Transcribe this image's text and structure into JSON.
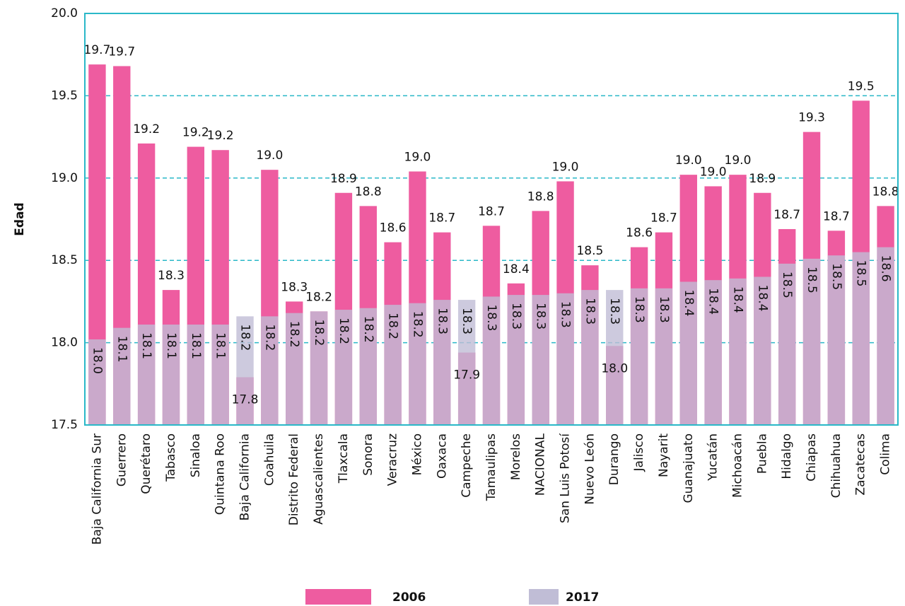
{
  "chart_data": {
    "type": "bar",
    "y_label": "Edad",
    "categories": [
      "Baja California Sur",
      "Guerrero",
      "Querétaro",
      "Tabasco",
      "Sinaloa",
      "Quintana Roo",
      "Baja California",
      "Coahuila",
      "Distrito Federal",
      "Aguascalientes",
      "Tlaxcala",
      "Sonora",
      "Veracruz",
      "México",
      "Oaxaca",
      "Campeche",
      "Tamaulipas",
      "Morelos",
      "NACIONAL",
      "San Luis Potosí",
      "Nuevo León",
      "Durango",
      "Jalisco",
      "Nayarit",
      "Guanajuato",
      "Yucatán",
      "Michoacán",
      "Puebla",
      "Hidalgo",
      "Chiapas",
      "Chihuahua",
      "Zacatecas",
      "Colima"
    ],
    "series": [
      {
        "name": "2006",
        "color": "#ee5ca0",
        "values": [
          19.69,
          19.68,
          19.21,
          18.32,
          19.19,
          19.17,
          17.79,
          19.05,
          18.25,
          18.19,
          18.91,
          18.83,
          18.61,
          19.04,
          18.67,
          17.94,
          18.71,
          18.36,
          18.8,
          18.98,
          18.47,
          17.98,
          18.58,
          18.67,
          19.02,
          18.95,
          19.02,
          18.91,
          18.69,
          19.28,
          18.68,
          19.47,
          18.83
        ],
        "value_labels": [
          "19.7",
          "19.7",
          "19.2",
          "18.3",
          "19.2",
          "19.2",
          "17.8",
          "19.0",
          "18.3",
          "18.2",
          "18.9",
          "18.8",
          "18.6",
          "19.0",
          "18.7",
          "17.9",
          "18.7",
          "18.4",
          "18.8",
          "19.0",
          "18.5",
          "18.0",
          "18.6",
          "18.7",
          "19.0",
          "19.0",
          "19.0",
          "18.9",
          "18.7",
          "19.3",
          "18.7",
          "19.5",
          "18.8"
        ]
      },
      {
        "name": "2017",
        "color": "#c0bdd6",
        "values": [
          18.02,
          18.09,
          18.11,
          18.11,
          18.11,
          18.11,
          18.16,
          18.16,
          18.18,
          18.19,
          18.2,
          18.21,
          18.23,
          18.24,
          18.26,
          18.26,
          18.28,
          18.29,
          18.29,
          18.3,
          18.32,
          18.32,
          18.33,
          18.33,
          18.37,
          18.38,
          18.39,
          18.4,
          18.48,
          18.51,
          18.53,
          18.55,
          18.58
        ],
        "value_labels": [
          "18.0",
          "18.1",
          "18.1",
          "18.1",
          "18.1",
          "18.1",
          "18.2",
          "18.2",
          "18.2",
          "18.2",
          "18.2",
          "18.2",
          "18.2",
          "18.2",
          "18.3",
          "18.3",
          "18.3",
          "18.3",
          "18.3",
          "18.3",
          "18.3",
          "18.3",
          "18.3",
          "18.3",
          "18.4",
          "18.4",
          "18.4",
          "18.4",
          "18.5",
          "18.5",
          "18.5",
          "18.5",
          "18.6"
        ]
      }
    ],
    "ylim": [
      17.5,
      20.0
    ],
    "yticks": [
      {
        "value": 17.5,
        "label": "17.5"
      },
      {
        "value": 18,
        "label": "18.0"
      },
      {
        "value": 18.5,
        "label": "18.5"
      },
      {
        "value": 19,
        "label": "19.0"
      },
      {
        "value": 19.5,
        "label": "19.5"
      },
      {
        "value": 20,
        "label": "20.0"
      }
    ],
    "grid": true,
    "legend": "bottom"
  }
}
